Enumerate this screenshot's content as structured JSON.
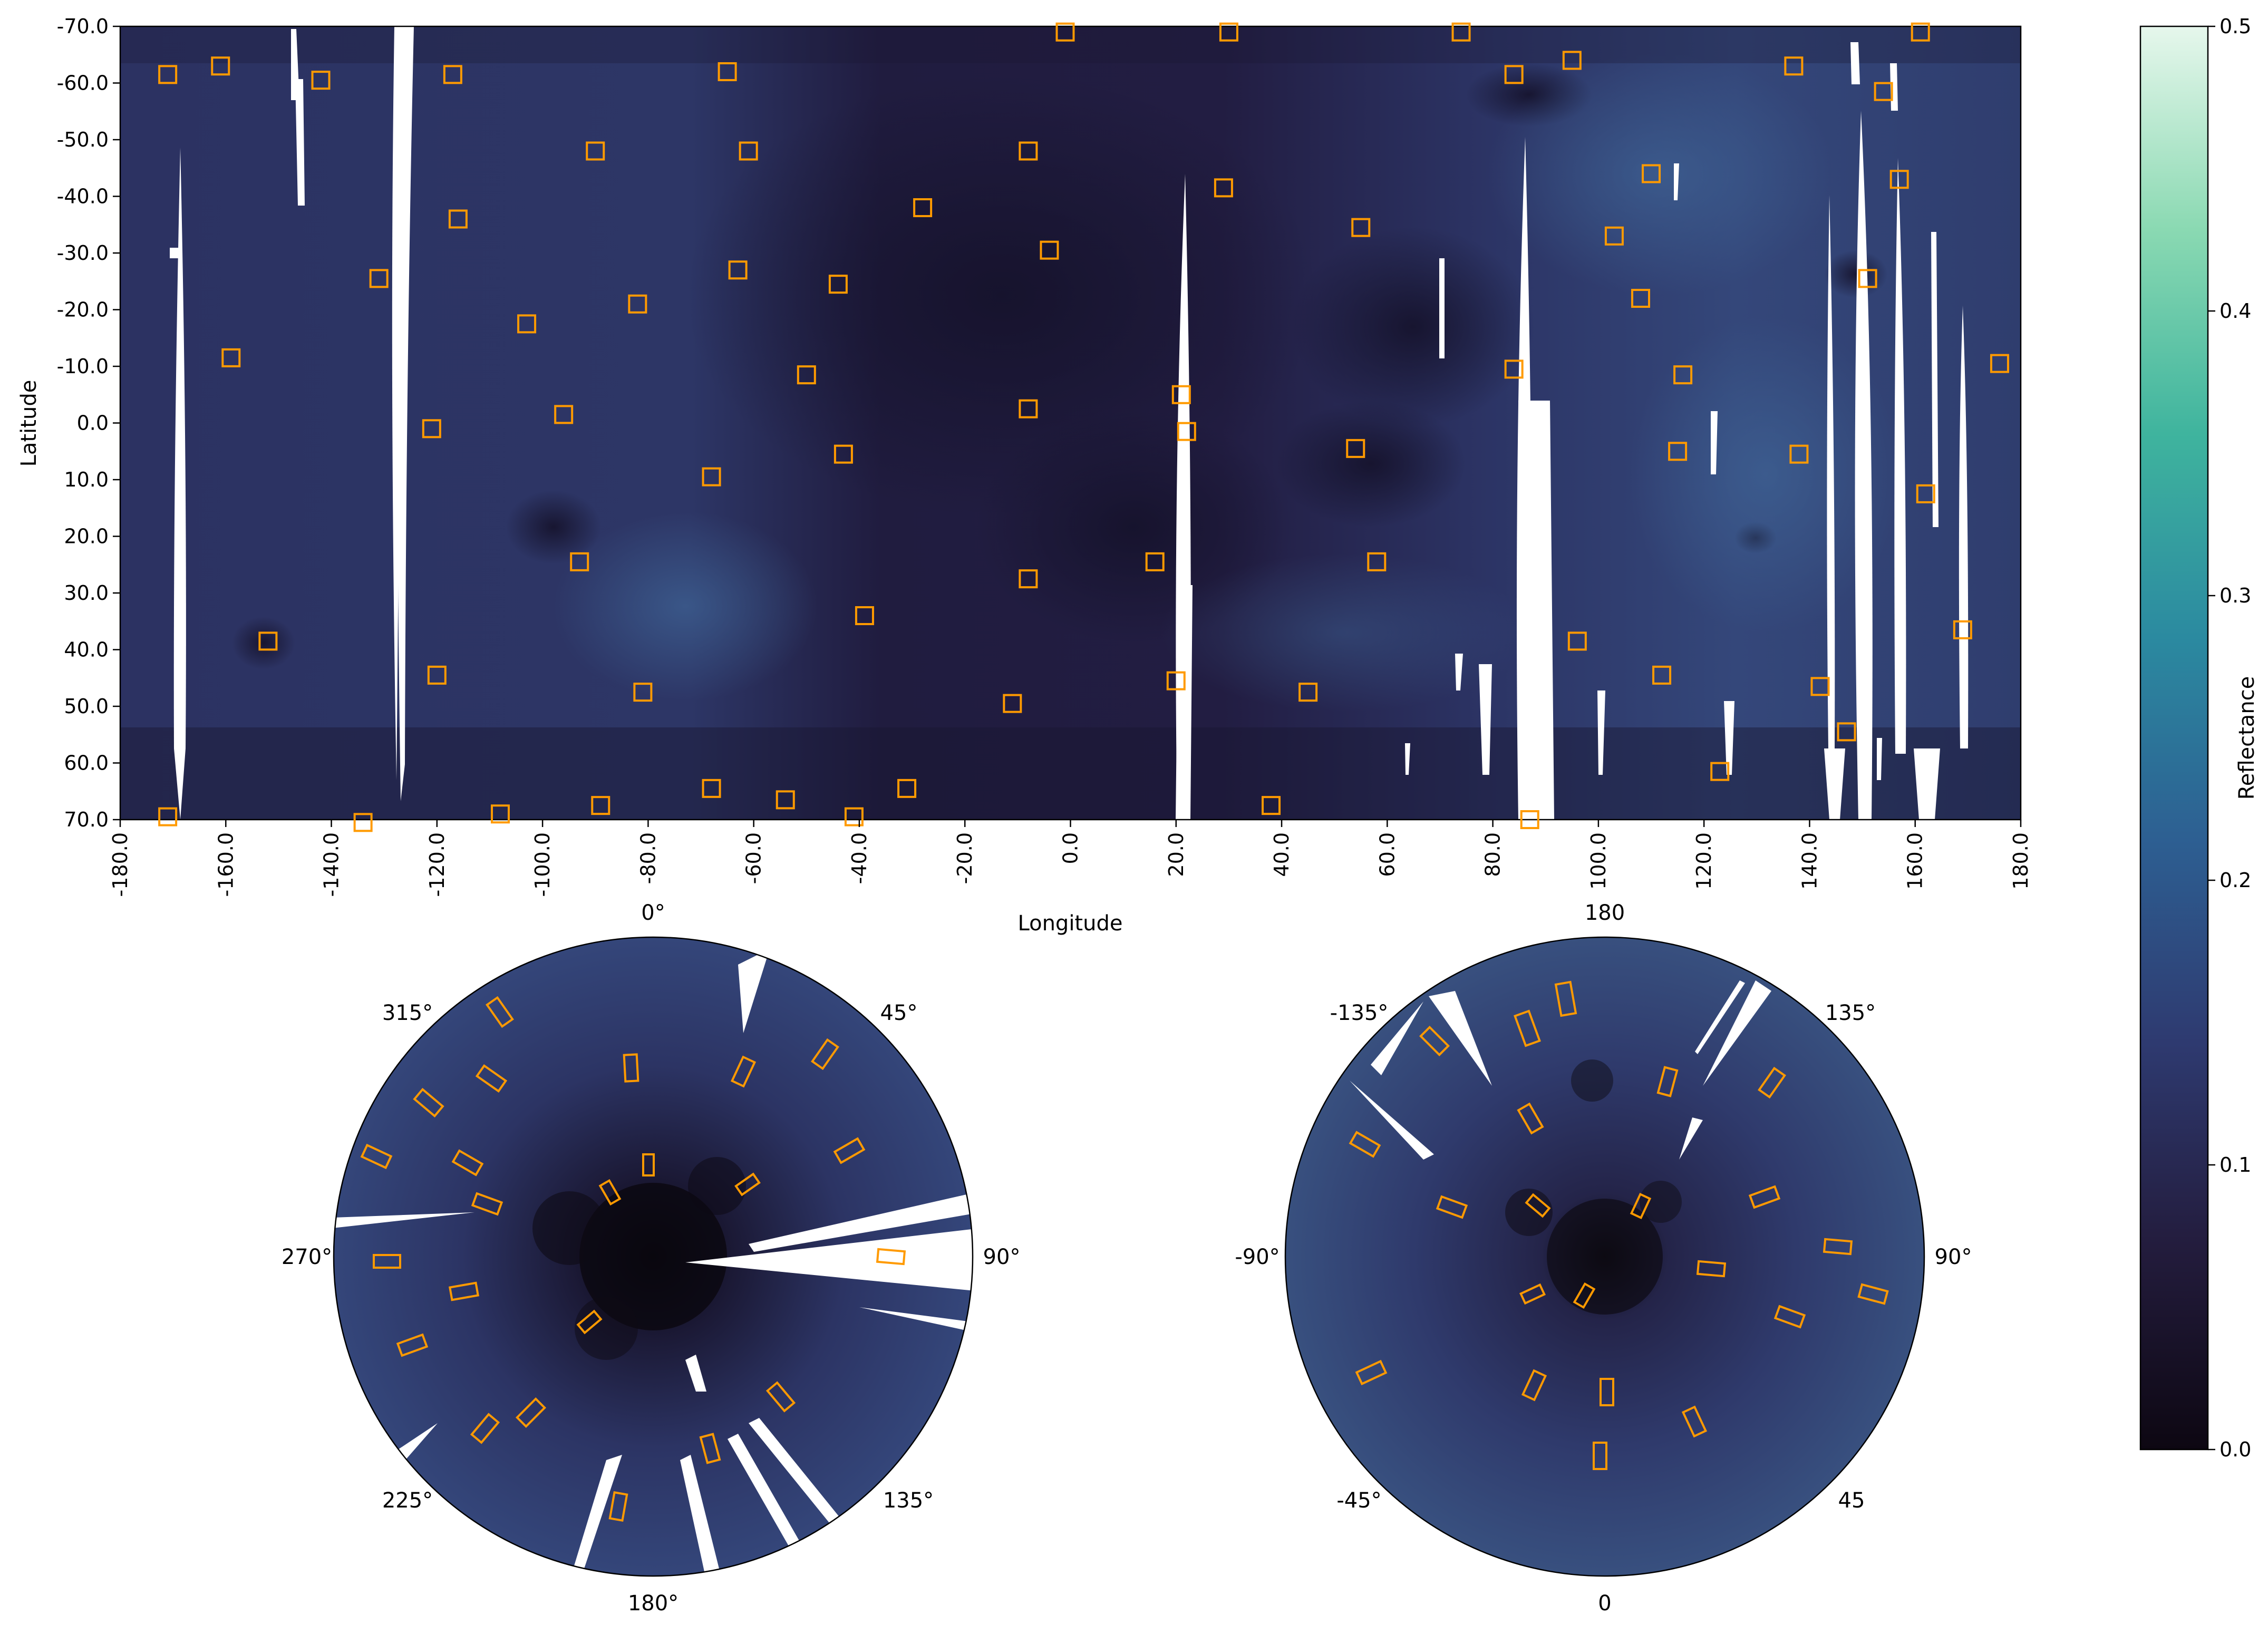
{
  "figure": {
    "colors": {
      "map_dark": "#1a1733",
      "map_mid": "#2b2c5e",
      "map_light": "#3a5a8c",
      "gap": "#ffffff",
      "site_marker": "#ff9a00",
      "axis": "#000000"
    },
    "main_map": {
      "xlabel": "Longitude",
      "ylabel": "Latitude",
      "xlim": [
        -180,
        180
      ],
      "ylim": [
        -70,
        70
      ],
      "x_ticks": [
        "-180.0",
        "-160.0",
        "-140.0",
        "-120.0",
        "-100.0",
        "-80.0",
        "-60.0",
        "-40.0",
        "-20.0",
        "0.0",
        "20.0",
        "40.0",
        "60.0",
        "80.0",
        "100.0",
        "120.0",
        "140.0",
        "160.0",
        "180.0"
      ],
      "y_ticks": [
        "-70.0",
        "-60.0",
        "-50.0",
        "-40.0",
        "-30.0",
        "-20.0",
        "-10.0",
        "0.0",
        "10.0",
        "20.0",
        "30.0",
        "40.0",
        "50.0",
        "60.0",
        "70.0"
      ],
      "sites": [
        [
          -171,
          -61.5
        ],
        [
          -161,
          -63
        ],
        [
          -142,
          -60.5
        ],
        [
          -117,
          -61.5
        ],
        [
          -65,
          -62
        ],
        [
          -1,
          -69
        ],
        [
          30,
          -69
        ],
        [
          74,
          -69
        ],
        [
          84,
          -61.5
        ],
        [
          95,
          -64
        ],
        [
          137,
          -63
        ],
        [
          161,
          -69
        ],
        [
          154,
          -58.5
        ],
        [
          -90,
          -48
        ],
        [
          -61,
          -48
        ],
        [
          -8,
          -48
        ],
        [
          29,
          -41.5
        ],
        [
          110,
          -44
        ],
        [
          157,
          -43
        ],
        [
          -116,
          -36
        ],
        [
          -28,
          -38
        ],
        [
          55,
          -34.5
        ],
        [
          103,
          -33
        ],
        [
          -131,
          -25.5
        ],
        [
          -63,
          -27
        ],
        [
          -44,
          -24.5
        ],
        [
          -4,
          -30.5
        ],
        [
          108,
          -22
        ],
        [
          151,
          -25.5
        ],
        [
          -103,
          -17.5
        ],
        [
          -82,
          -21
        ],
        [
          -159,
          -11.5
        ],
        [
          -50,
          -8.5
        ],
        [
          84,
          -9.5
        ],
        [
          116,
          -8.5
        ],
        [
          176,
          -10.5
        ],
        [
          21,
          -5
        ],
        [
          -121,
          1
        ],
        [
          -96,
          -1.5
        ],
        [
          -8,
          -2.5
        ],
        [
          22,
          1.5
        ],
        [
          -43,
          5.5
        ],
        [
          54,
          4.5
        ],
        [
          115,
          5
        ],
        [
          138,
          5.5
        ],
        [
          162,
          12.5
        ],
        [
          -68,
          9.5
        ],
        [
          -93,
          24.5
        ],
        [
          16,
          24.5
        ],
        [
          58,
          24.5
        ],
        [
          -8,
          27.5
        ],
        [
          -39,
          34
        ],
        [
          -152,
          38.5
        ],
        [
          96,
          38.5
        ],
        [
          169,
          36.5
        ],
        [
          -120,
          44.5
        ],
        [
          -81,
          47.5
        ],
        [
          -11,
          49.5
        ],
        [
          20,
          45.5
        ],
        [
          45,
          47.5
        ],
        [
          112,
          44.5
        ],
        [
          142,
          46.5
        ],
        [
          147,
          54.5
        ],
        [
          123,
          61.5
        ],
        [
          -171,
          69.5
        ],
        [
          -134,
          70.5
        ],
        [
          -108,
          69
        ],
        [
          -89,
          67.5
        ],
        [
          -68,
          64.5
        ],
        [
          -54,
          66.5
        ],
        [
          -41,
          69.5
        ],
        [
          -31,
          64.5
        ],
        [
          38,
          67.5
        ],
        [
          87,
          70
        ]
      ]
    },
    "south_polar": {
      "labels": {
        "top": "0°",
        "top_right": "45°",
        "right": "90°",
        "bottom_right": "135°",
        "bottom": "180°",
        "bottom_left": "225°",
        "left": "270°",
        "top_left": "315°"
      }
    },
    "north_polar": {
      "labels": {
        "top": "180",
        "top_right": "135°",
        "right": "90°",
        "bottom_right": "45",
        "bottom": "0",
        "bottom_left": "-45°",
        "left": "-90°",
        "top_left": "-135°"
      }
    },
    "colorbar": {
      "label": "Reflectance",
      "range": [
        0.0,
        0.5
      ],
      "ticks": [
        "0.0",
        "0.1",
        "0.2",
        "0.3",
        "0.4",
        "0.5"
      ],
      "stops": [
        "#0d0712",
        "#231c3d",
        "#2e3a70",
        "#2d5f92",
        "#2b8aa0",
        "#3fb49e",
        "#8ad9b2",
        "#e6f7ec"
      ]
    }
  }
}
